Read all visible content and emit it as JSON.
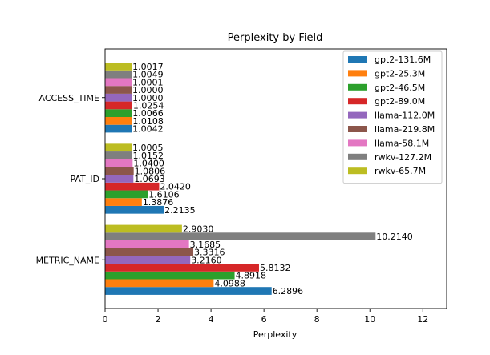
{
  "chart_data": {
    "type": "bar",
    "orientation": "horizontal",
    "title": "Perplexity by Field",
    "xlabel": "Perplexity",
    "ylabel": "",
    "xlim": [
      0,
      12.9
    ],
    "xticks": [
      0,
      2,
      4,
      6,
      8,
      10,
      12
    ],
    "grid": false,
    "legend_position": "top-right",
    "categories": [
      "METRIC_NAME",
      "PAT_ID",
      "ACCESS_TIME"
    ],
    "series": [
      {
        "name": "gpt2-131.6M",
        "color": "#1f77b4",
        "values": [
          6.2896,
          2.2135,
          1.0042
        ],
        "labels": [
          "6.2896",
          "2.2135",
          "1.0042"
        ]
      },
      {
        "name": "gpt2-25.3M",
        "color": "#ff7f0e",
        "values": [
          4.0988,
          1.3876,
          1.0108
        ],
        "labels": [
          "4.0988",
          "1.3876",
          "1.0108"
        ]
      },
      {
        "name": "gpt2-46.5M",
        "color": "#2ca02c",
        "values": [
          4.8918,
          1.6106,
          1.0066
        ],
        "labels": [
          "4.8918",
          "1.6106",
          "1.0066"
        ]
      },
      {
        "name": "gpt2-89.0M",
        "color": "#d62728",
        "values": [
          5.8132,
          2.042,
          1.0254
        ],
        "labels": [
          "5.8132",
          "2.0420",
          "1.0254"
        ]
      },
      {
        "name": "llama-112.0M",
        "color": "#9467bd",
        "values": [
          3.216,
          1.0693,
          1.0
        ],
        "labels": [
          "3.2160",
          "1.0693",
          "1.0000"
        ]
      },
      {
        "name": "llama-219.8M",
        "color": "#8c564b",
        "values": [
          3.3316,
          1.0806,
          1.0
        ],
        "labels": [
          "3.3316",
          "1.0806",
          "1.0000"
        ]
      },
      {
        "name": "llama-58.1M",
        "color": "#e377c2",
        "values": [
          3.1685,
          1.04,
          1.0001
        ],
        "labels": [
          "3.1685",
          "1.0400",
          "1.0001"
        ]
      },
      {
        "name": "rwkv-127.2M",
        "color": "#7f7f7f",
        "values": [
          10.214,
          1.0152,
          1.0049
        ],
        "labels": [
          "10.2140",
          "1.0152",
          "1.0049"
        ]
      },
      {
        "name": "rwkv-65.7M",
        "color": "#bcbd22",
        "values": [
          2.903,
          1.0005,
          1.0017
        ],
        "labels": [
          "2.9030",
          "1.0005",
          "1.0017"
        ]
      }
    ]
  }
}
